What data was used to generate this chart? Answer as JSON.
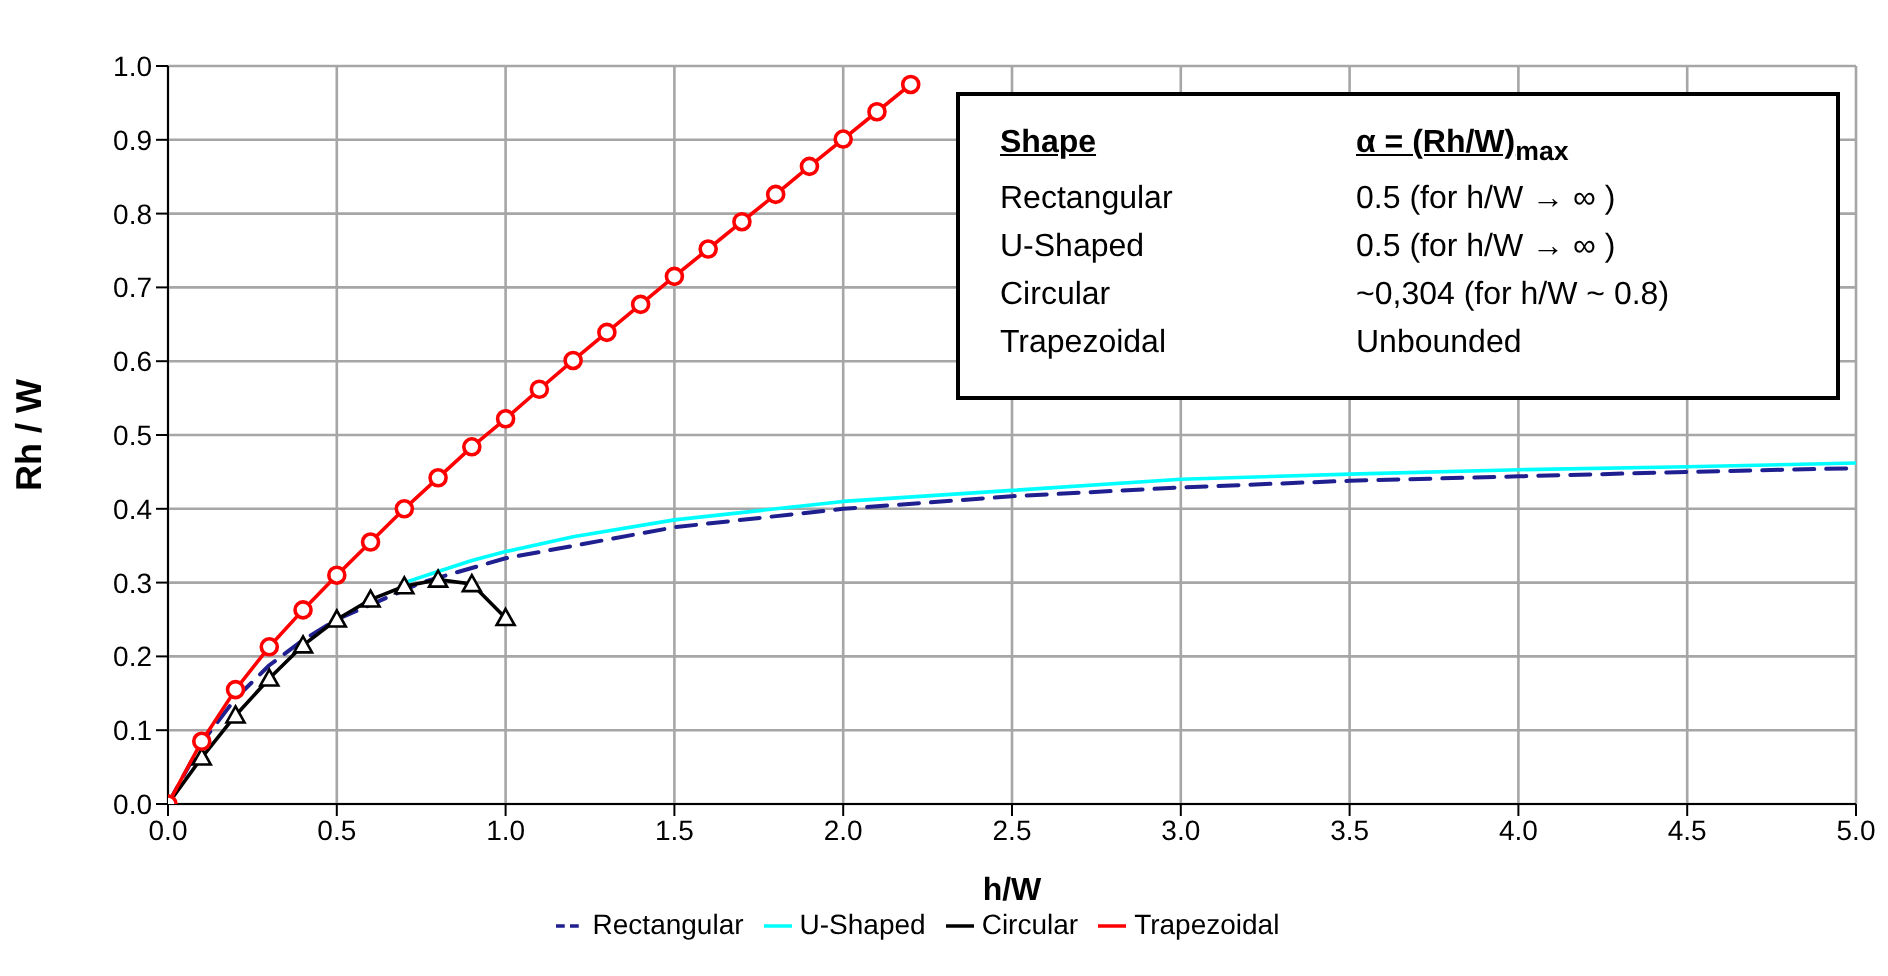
{
  "chart_data": {
    "type": "line",
    "xlabel": "h/W",
    "ylabel": "Rh / W",
    "xlim": [
      0,
      5
    ],
    "xticks": [
      {
        "value": 0,
        "label": "0.0"
      },
      {
        "value": 0.5,
        "label": "0.5"
      },
      {
        "value": 1,
        "label": "1.0"
      },
      {
        "value": 1.5,
        "label": "1.5"
      },
      {
        "value": 2,
        "label": "2.0"
      },
      {
        "value": 2.5,
        "label": "2.5"
      },
      {
        "value": 3,
        "label": "3.0"
      },
      {
        "value": 3.5,
        "label": "3.5"
      },
      {
        "value": 4,
        "label": "4.0"
      },
      {
        "value": 4.5,
        "label": "4.5"
      },
      {
        "value": 5,
        "label": "5.0"
      }
    ],
    "ylim": [
      0,
      1
    ],
    "yticks": [
      {
        "value": 0,
        "label": "0.0"
      },
      {
        "value": 0.1,
        "label": "0.1"
      },
      {
        "value": 0.2,
        "label": "0.2"
      },
      {
        "value": 0.3,
        "label": "0.3"
      },
      {
        "value": 0.4,
        "label": "0.4"
      },
      {
        "value": 0.5,
        "label": "0.5"
      },
      {
        "value": 0.6,
        "label": "0.6"
      },
      {
        "value": 0.7,
        "label": "0.7"
      },
      {
        "value": 0.8,
        "label": "0.8"
      },
      {
        "value": 0.9,
        "label": "0.9"
      },
      {
        "value": 1,
        "label": "1.0"
      }
    ],
    "grid": true,
    "legend": "bottom",
    "series": [
      {
        "name": "Rectangular",
        "color": "#1f1f8f",
        "line_style": "dashed",
        "marker": "none",
        "x": [
          0,
          0.1,
          0.2,
          0.3,
          0.4,
          0.5,
          0.75,
          1,
          1.5,
          2,
          2.5,
          3,
          3.5,
          4,
          4.5,
          5
        ],
        "values": [
          0,
          0.083,
          0.143,
          0.188,
          0.222,
          0.25,
          0.3,
          0.333,
          0.375,
          0.4,
          0.417,
          0.429,
          0.438,
          0.444,
          0.45,
          0.455
        ]
      },
      {
        "name": "U-Shaped",
        "color": "#00ffff",
        "line_style": "solid",
        "marker": "none",
        "x": [
          0.7,
          0.8,
          0.9,
          1,
          1.2,
          1.5,
          2,
          2.5,
          3,
          3.5,
          4,
          4.5,
          5
        ],
        "values": [
          0.3,
          0.315,
          0.33,
          0.342,
          0.362,
          0.385,
          0.41,
          0.425,
          0.44,
          0.447,
          0.453,
          0.457,
          0.462
        ]
      },
      {
        "name": "Circular",
        "color": "#000000",
        "line_style": "solid",
        "marker": "triangle",
        "x": [
          0,
          0.1,
          0.2,
          0.3,
          0.4,
          0.5,
          0.6,
          0.7,
          0.8,
          0.9,
          1
        ],
        "values": [
          0,
          0.063,
          0.12,
          0.17,
          0.215,
          0.25,
          0.277,
          0.295,
          0.304,
          0.298,
          0.252
        ]
      },
      {
        "name": "Trapezoidal",
        "color": "#ff0000",
        "line_style": "solid",
        "marker": "circle",
        "x": [
          0,
          0.1,
          0.2,
          0.3,
          0.4,
          0.5,
          0.6,
          0.7,
          0.8,
          0.9,
          1,
          1.1,
          1.2,
          1.3,
          1.4,
          1.5,
          1.6,
          1.7,
          1.8,
          1.9,
          2,
          2.1,
          2.2
        ],
        "values": [
          0,
          0.085,
          0.155,
          0.213,
          0.263,
          0.31,
          0.355,
          0.4,
          0.442,
          0.484,
          0.522,
          0.562,
          0.601,
          0.639,
          0.677,
          0.715,
          0.752,
          0.789,
          0.826,
          0.864,
          0.901,
          0.938,
          0.975
        ]
      }
    ],
    "annotations": [
      "Shape",
      "α = (Rh/W)$_{max}$",
      "Rectangular",
      "0.5 (for h/W → ∞ )",
      "U-Shaped",
      "0.5 (for h/W → ∞ )",
      "Circular",
      "~0,304 (for h/W ~ 0.8)",
      "Trapezoidal",
      "Unbounded"
    ]
  }
}
